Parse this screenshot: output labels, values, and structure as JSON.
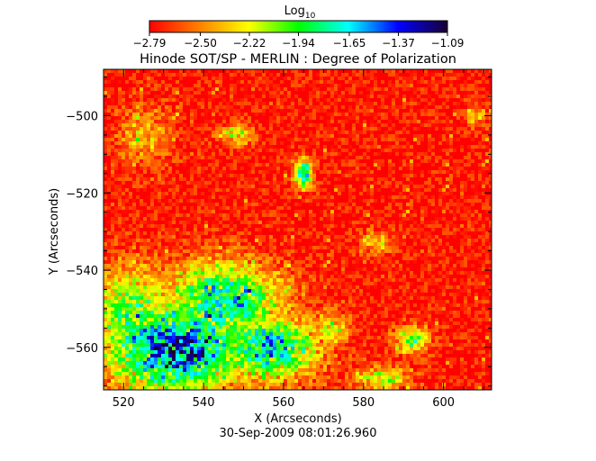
{
  "chart_data": {
    "type": "heatmap",
    "title": "Hinode SOT/SP - MERLIN : Degree of Polarization",
    "subtitle": "30-Sep-2009 08:01:26.960",
    "xlabel": "X (Arcseconds)",
    "ylabel": "Y (Arcseconds)",
    "xlim": [
      515,
      612
    ],
    "ylim": [
      -571,
      -488
    ],
    "x_ticks": [
      520,
      540,
      560,
      580,
      600
    ],
    "y_ticks": [
      -500,
      -520,
      -540,
      -560
    ],
    "x_tick_labels": [
      "520",
      "540",
      "560",
      "580",
      "600"
    ],
    "y_tick_labels": [
      "−500",
      "−520",
      "−540",
      "−560"
    ],
    "colorbar": {
      "label_base": "Log",
      "label_sub": "10",
      "range": [
        -2.79,
        -1.09
      ],
      "ticks": [
        -2.79,
        -2.5,
        -2.22,
        -1.94,
        -1.65,
        -1.37,
        -1.09
      ],
      "tick_labels": [
        "−2.79",
        "−2.50",
        "−2.22",
        "−1.94",
        "−1.65",
        "−1.37",
        "−1.09"
      ],
      "colormap": [
        "#ff0000",
        "#ff7f00",
        "#ffff00",
        "#00ff00",
        "#00ffff",
        "#0000ff",
        "#1a0033"
      ]
    },
    "field": {
      "background_log10": -2.75,
      "features": [
        {
          "name": "plage",
          "x": 533,
          "y": -560,
          "sx": 12,
          "sy": 8,
          "log10": -1.15
        },
        {
          "name": "plage",
          "x": 545,
          "y": -548,
          "sx": 10,
          "sy": 7,
          "log10": -1.5
        },
        {
          "name": "plage",
          "x": 556,
          "y": -560,
          "sx": 9,
          "sy": 6,
          "log10": -1.45
        },
        {
          "name": "plage",
          "x": 522,
          "y": -552,
          "sx": 8,
          "sy": 9,
          "log10": -1.8
        },
        {
          "name": "plage",
          "x": 525,
          "y": -505,
          "sx": 5,
          "sy": 6,
          "log10": -2.35
        },
        {
          "name": "knot",
          "x": 565,
          "y": -515,
          "sx": 1.5,
          "sy": 2.5,
          "log10": -1.4
        },
        {
          "name": "knot",
          "x": 548,
          "y": -505,
          "sx": 3,
          "sy": 2,
          "log10": -2.1
        },
        {
          "name": "knot",
          "x": 572,
          "y": -555,
          "sx": 3,
          "sy": 3,
          "log10": -2.05
        },
        {
          "name": "knot",
          "x": 592,
          "y": -558,
          "sx": 3,
          "sy": 2.5,
          "log10": -1.9
        },
        {
          "name": "knot",
          "x": 585,
          "y": -568,
          "sx": 5,
          "sy": 2,
          "log10": -2.05
        },
        {
          "name": "knot",
          "x": 608,
          "y": -500,
          "sx": 2,
          "sy": 2,
          "log10": -2.2
        },
        {
          "name": "knot",
          "x": 583,
          "y": -533,
          "sx": 3,
          "sy": 2,
          "log10": -2.25
        }
      ]
    }
  }
}
